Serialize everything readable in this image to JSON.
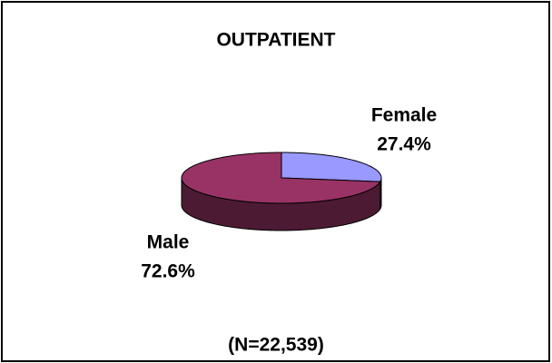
{
  "chart_data": {
    "type": "pie",
    "title": "OUTPATIENT",
    "categories": [
      "Female",
      "Male"
    ],
    "values": [
      27.4,
      72.6
    ],
    "value_labels": [
      "27.4%",
      "72.6%"
    ],
    "colors": [
      "#9999ff",
      "#993366"
    ],
    "side_colors": [
      "#4d4d80",
      "#4d1a33"
    ],
    "annotation": "(N=22,539)"
  }
}
